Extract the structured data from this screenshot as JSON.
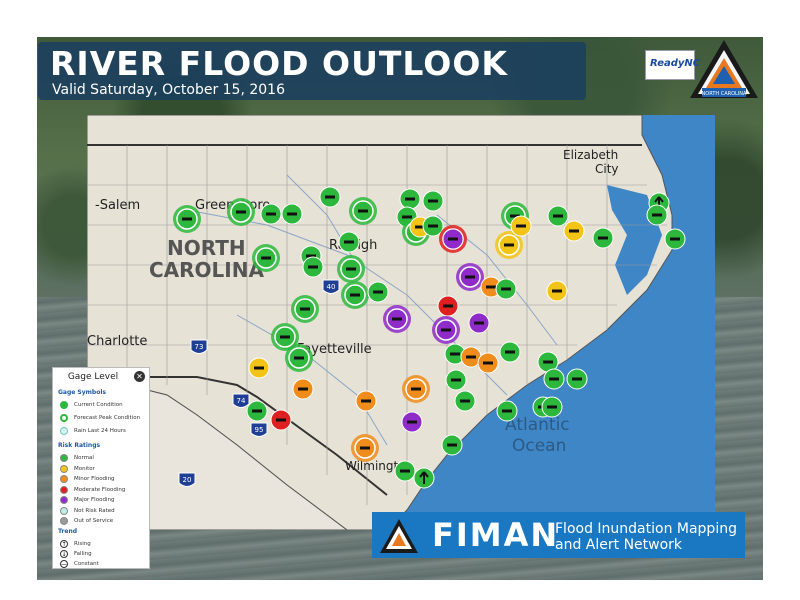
{
  "header": {
    "title": "RIVER FLOOD OUTLOOK",
    "subtitle": "Valid Saturday, October 15, 2016"
  },
  "logos": {
    "readync_label": "ReadyNC",
    "emergency_seal_text": "NORTH CAROLINA"
  },
  "map": {
    "place_labels": [
      {
        "id": "salem",
        "text": "-Salem"
      },
      {
        "id": "greensboro",
        "text": "Greensboro"
      },
      {
        "id": "raleigh",
        "text": "Raleigh"
      },
      {
        "id": "north",
        "text": "NORTH"
      },
      {
        "id": "carolina",
        "text": "CAROLINA"
      },
      {
        "id": "charlotte",
        "text": "Charlotte"
      },
      {
        "id": "fayetteville",
        "text": "Fayetteville"
      },
      {
        "id": "wilmington",
        "text": "Wilmington"
      },
      {
        "id": "elizabeth",
        "text": "Elizabeth"
      },
      {
        "id": "city",
        "text": "City"
      },
      {
        "id": "atlantic",
        "text": "Atlantic"
      },
      {
        "id": "ocean",
        "text": "Ocean"
      }
    ],
    "highway_shields": [
      "40",
      "73",
      "74",
      "95",
      "20"
    ],
    "gages": [
      {
        "r": "normal",
        "big": true,
        "trend": "constant"
      },
      {
        "r": "normal",
        "big": true,
        "trend": "constant"
      },
      {
        "r": "normal",
        "big": false,
        "trend": "constant"
      },
      {
        "r": "normal",
        "big": false,
        "trend": "constant"
      },
      {
        "r": "normal",
        "big": false,
        "trend": "constant"
      },
      {
        "r": "normal",
        "big": true,
        "trend": "constant"
      },
      {
        "r": "normal",
        "big": false,
        "trend": "constant"
      },
      {
        "r": "normal",
        "big": false,
        "trend": "constant"
      },
      {
        "r": "normal",
        "big": false,
        "trend": "constant"
      },
      {
        "r": "normal",
        "big": true,
        "trend": "constant"
      },
      {
        "r": "monitor",
        "big": false,
        "trend": "constant"
      },
      {
        "r": "normal",
        "big": false,
        "trend": "constant"
      },
      {
        "r": "moderate",
        "big": true,
        "trend": "constant"
      },
      {
        "r": "major",
        "big": false,
        "trend": "constant"
      },
      {
        "r": "monitor",
        "big": true,
        "trend": "constant"
      },
      {
        "r": "normal",
        "big": true,
        "trend": "constant"
      },
      {
        "r": "monitor",
        "big": false,
        "trend": "constant"
      },
      {
        "r": "normal",
        "big": false,
        "trend": "constant"
      },
      {
        "r": "monitor",
        "big": false,
        "trend": "constant"
      },
      {
        "r": "normal",
        "big": false,
        "trend": "constant"
      },
      {
        "r": "normal",
        "big": false,
        "trend": "rising"
      },
      {
        "r": "normal",
        "big": false,
        "trend": "constant"
      },
      {
        "r": "normal",
        "big": false,
        "trend": "constant"
      },
      {
        "r": "normal",
        "big": true,
        "trend": "constant"
      },
      {
        "r": "normal",
        "big": false,
        "trend": "constant"
      },
      {
        "r": "normal",
        "big": false,
        "trend": "constant"
      },
      {
        "r": "normal",
        "big": false,
        "trend": "constant"
      },
      {
        "r": "normal",
        "big": true,
        "trend": "constant"
      },
      {
        "r": "normal",
        "big": true,
        "trend": "constant"
      },
      {
        "r": "normal",
        "big": false,
        "trend": "constant"
      },
      {
        "r": "major",
        "big": true,
        "trend": "constant"
      },
      {
        "r": "minor",
        "big": false,
        "trend": "constant"
      },
      {
        "r": "normal",
        "big": false,
        "trend": "constant"
      },
      {
        "r": "monitor",
        "big": false,
        "trend": "constant"
      },
      {
        "r": "normal",
        "big": true,
        "trend": "constant"
      },
      {
        "r": "normal",
        "big": false,
        "trend": "constant"
      },
      {
        "r": "normal",
        "big": false,
        "trend": "constant"
      },
      {
        "r": "major",
        "big": true,
        "trend": "constant"
      },
      {
        "r": "moderate",
        "big": false,
        "trend": "constant"
      },
      {
        "r": "major",
        "big": true,
        "trend": "constant"
      },
      {
        "r": "major",
        "big": false,
        "trend": "constant"
      },
      {
        "r": "normal",
        "big": true,
        "trend": "constant"
      },
      {
        "r": "normal",
        "big": true,
        "trend": "constant"
      },
      {
        "r": "monitor",
        "big": false,
        "trend": "constant"
      },
      {
        "r": "normal",
        "big": false,
        "trend": "constant"
      },
      {
        "r": "minor",
        "big": false,
        "trend": "constant"
      },
      {
        "r": "minor",
        "big": false,
        "trend": "constant"
      },
      {
        "r": "normal",
        "big": false,
        "trend": "constant"
      },
      {
        "r": "normal",
        "big": false,
        "trend": "constant"
      },
      {
        "r": "normal",
        "big": false,
        "trend": "constant"
      },
      {
        "r": "normal",
        "big": false,
        "trend": "constant"
      },
      {
        "r": "minor",
        "big": false,
        "trend": "constant"
      },
      {
        "r": "minor",
        "big": true,
        "trend": "constant"
      },
      {
        "r": "normal",
        "big": false,
        "trend": "constant"
      },
      {
        "r": "normal",
        "big": false,
        "trend": "constant"
      },
      {
        "r": "minor",
        "big": false,
        "trend": "constant"
      },
      {
        "r": "normal",
        "big": false,
        "trend": "constant"
      },
      {
        "r": "normal",
        "big": false,
        "trend": "constant"
      },
      {
        "r": "normal",
        "big": false,
        "trend": "constant"
      },
      {
        "r": "normal",
        "big": false,
        "trend": "constant"
      },
      {
        "r": "moderate",
        "big": false,
        "trend": "constant"
      },
      {
        "r": "major",
        "big": false,
        "trend": "constant"
      },
      {
        "r": "normal",
        "big": false,
        "trend": "constant"
      },
      {
        "r": "minor",
        "big": true,
        "trend": "constant"
      },
      {
        "r": "normal",
        "big": false,
        "trend": "constant"
      },
      {
        "r": "normal",
        "big": false,
        "trend": "rising"
      }
    ]
  },
  "legend": {
    "title": "Gage Level",
    "gage_symbols_heading": "Gage Symbols",
    "gage_symbols": [
      "Current Condition",
      "Forecast Peak Condition",
      "Rain Last 24 Hours"
    ],
    "risk_heading": "Risk Ratings",
    "risks": [
      {
        "label": "Normal",
        "color": "#2db83d"
      },
      {
        "label": "Monitor",
        "color": "#f2c418"
      },
      {
        "label": "Minor Flooding",
        "color": "#f08c1c"
      },
      {
        "label": "Moderate Flooding",
        "color": "#e02020"
      },
      {
        "label": "Major Flooding",
        "color": "#8e2bc9"
      },
      {
        "label": "Not Risk Rated",
        "color": "#bfeee8"
      },
      {
        "label": "Out of Service",
        "color": "#9a9a9a"
      }
    ],
    "trend_heading": "Trend",
    "trends": [
      "Rising",
      "Falling",
      "Constant"
    ]
  },
  "footer": {
    "brand": "FIMAN",
    "line1": "Flood Inundation Mapping",
    "line2": "and Alert Network"
  },
  "colors": {
    "normal": "#2db83d",
    "monitor": "#f2c418",
    "minor": "#f08c1c",
    "moderate": "#e02020",
    "major": "#8e2bc9",
    "land": "#e7e2d6",
    "ocean": "#3f86c6",
    "banner": "#1a3e60",
    "fiman": "#1a78c2"
  }
}
